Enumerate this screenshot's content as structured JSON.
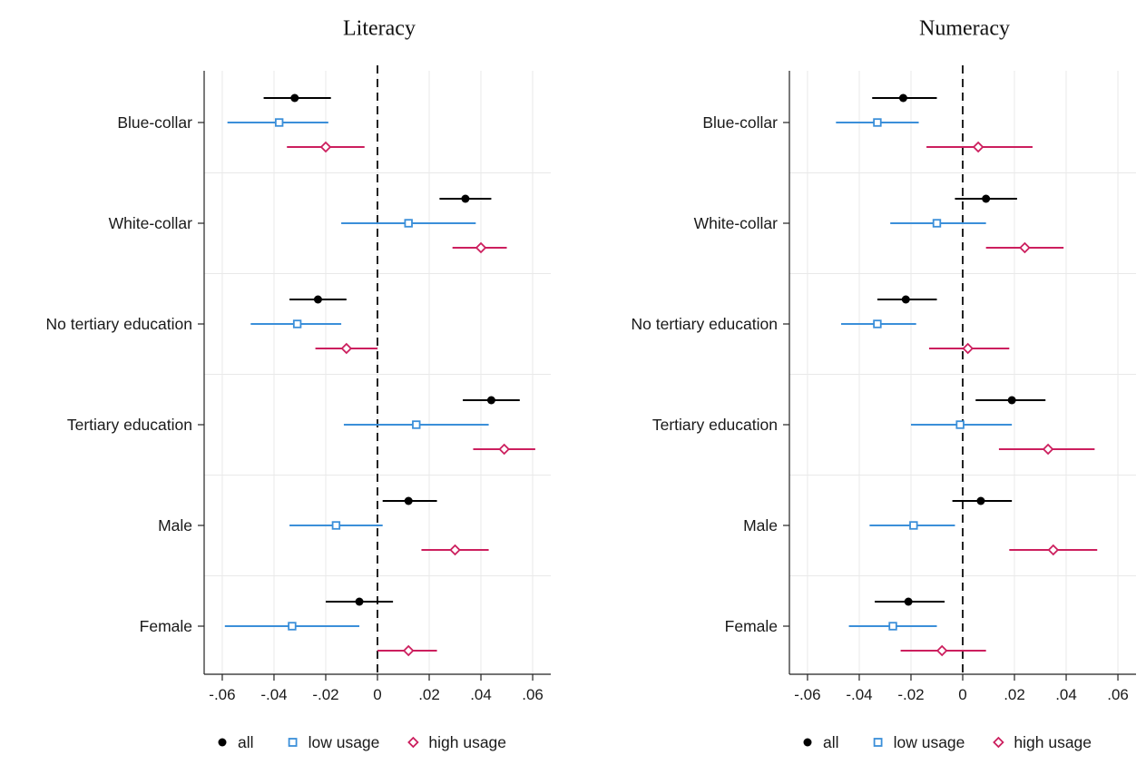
{
  "chart_data": [
    {
      "type": "scatter",
      "title": "Literacy",
      "xlabel": "",
      "ylabel": "",
      "xlim": [
        -0.067,
        0.067
      ],
      "xticks": [
        -0.06,
        -0.04,
        -0.02,
        0,
        0.02,
        0.04,
        0.06
      ],
      "xtick_labels": [
        "-.06",
        "-.04",
        "-.02",
        "0",
        ".02",
        ".04",
        ".06"
      ],
      "categories": [
        "Blue-collar",
        "White-collar",
        "No tertiary education",
        "Tertiary education",
        "Male",
        "Female"
      ],
      "grid": true,
      "reference_line": 0,
      "legend_position": "bottom",
      "series": [
        {
          "name": "all",
          "marker": "circle",
          "color": "#000000",
          "points": [
            {
              "y": -0.032,
              "lo": -0.044,
              "hi": -0.018
            },
            {
              "y": 0.034,
              "lo": 0.024,
              "hi": 0.044
            },
            {
              "y": -0.023,
              "lo": -0.034,
              "hi": -0.012
            },
            {
              "y": 0.044,
              "lo": 0.033,
              "hi": 0.055
            },
            {
              "y": 0.012,
              "lo": 0.002,
              "hi": 0.023
            },
            {
              "y": -0.007,
              "lo": -0.02,
              "hi": 0.006
            }
          ]
        },
        {
          "name": "low usage",
          "marker": "square",
          "color": "#3b8fd9",
          "points": [
            {
              "y": -0.038,
              "lo": -0.058,
              "hi": -0.019
            },
            {
              "y": 0.012,
              "lo": -0.014,
              "hi": 0.038
            },
            {
              "y": -0.031,
              "lo": -0.049,
              "hi": -0.014
            },
            {
              "y": 0.015,
              "lo": -0.013,
              "hi": 0.043
            },
            {
              "y": -0.016,
              "lo": -0.034,
              "hi": 0.002
            },
            {
              "y": -0.033,
              "lo": -0.059,
              "hi": -0.007
            }
          ]
        },
        {
          "name": "high usage",
          "marker": "diamond",
          "color": "#cc1f5e",
          "points": [
            {
              "y": -0.02,
              "lo": -0.035,
              "hi": -0.005
            },
            {
              "y": 0.04,
              "lo": 0.029,
              "hi": 0.05
            },
            {
              "y": -0.012,
              "lo": -0.024,
              "hi": 0.0
            },
            {
              "y": 0.049,
              "lo": 0.037,
              "hi": 0.061
            },
            {
              "y": 0.03,
              "lo": 0.017,
              "hi": 0.043
            },
            {
              "y": 0.012,
              "lo": 0.0,
              "hi": 0.023
            }
          ]
        }
      ]
    },
    {
      "type": "scatter",
      "title": "Numeracy",
      "xlabel": "",
      "ylabel": "",
      "xlim": [
        -0.067,
        0.067
      ],
      "xticks": [
        -0.06,
        -0.04,
        -0.02,
        0,
        0.02,
        0.04,
        0.06
      ],
      "xtick_labels": [
        "-.06",
        "-.04",
        "-.02",
        "0",
        ".02",
        ".04",
        ".06"
      ],
      "categories": [
        "Blue-collar",
        "White-collar",
        "No tertiary education",
        "Tertiary education",
        "Male",
        "Female"
      ],
      "grid": true,
      "reference_line": 0,
      "legend_position": "bottom",
      "series": [
        {
          "name": "all",
          "marker": "circle",
          "color": "#000000",
          "points": [
            {
              "y": -0.023,
              "lo": -0.035,
              "hi": -0.01
            },
            {
              "y": 0.009,
              "lo": -0.003,
              "hi": 0.021
            },
            {
              "y": -0.022,
              "lo": -0.033,
              "hi": -0.01
            },
            {
              "y": 0.019,
              "lo": 0.005,
              "hi": 0.032
            },
            {
              "y": 0.007,
              "lo": -0.004,
              "hi": 0.019
            },
            {
              "y": -0.021,
              "lo": -0.034,
              "hi": -0.007
            }
          ]
        },
        {
          "name": "low usage",
          "marker": "square",
          "color": "#3b8fd9",
          "points": [
            {
              "y": -0.033,
              "lo": -0.049,
              "hi": -0.017
            },
            {
              "y": -0.01,
              "lo": -0.028,
              "hi": 0.009
            },
            {
              "y": -0.033,
              "lo": -0.047,
              "hi": -0.018
            },
            {
              "y": -0.001,
              "lo": -0.02,
              "hi": 0.019
            },
            {
              "y": -0.019,
              "lo": -0.036,
              "hi": -0.003
            },
            {
              "y": -0.027,
              "lo": -0.044,
              "hi": -0.01
            }
          ]
        },
        {
          "name": "high usage",
          "marker": "diamond",
          "color": "#cc1f5e",
          "points": [
            {
              "y": 0.006,
              "lo": -0.014,
              "hi": 0.027
            },
            {
              "y": 0.024,
              "lo": 0.009,
              "hi": 0.039
            },
            {
              "y": 0.002,
              "lo": -0.013,
              "hi": 0.018
            },
            {
              "y": 0.033,
              "lo": 0.014,
              "hi": 0.051
            },
            {
              "y": 0.035,
              "lo": 0.018,
              "hi": 0.052
            },
            {
              "y": -0.008,
              "lo": -0.024,
              "hi": 0.009
            }
          ]
        }
      ]
    }
  ]
}
